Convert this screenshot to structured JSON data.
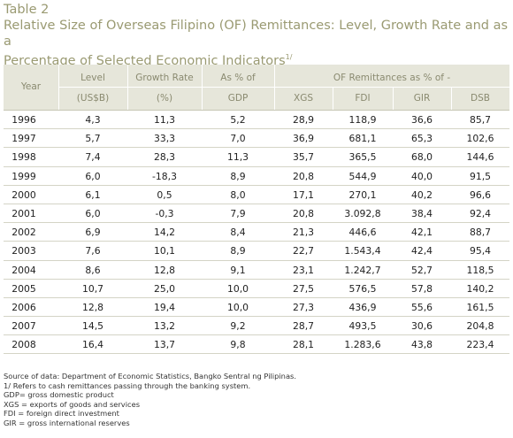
{
  "caption": {
    "table_label": "Table 2",
    "title_line1": "Relative Size of Overseas Filipino (OF) Remittances: Level, Growth Rate and as a",
    "title_line2": "Percentage of Selected Economic Indicators",
    "title_sup": "1/"
  },
  "headers": {
    "year": "Year",
    "level": "Level",
    "level_unit": "(US$B)",
    "growth": "Growth Rate",
    "growth_unit": "(%)",
    "gdp_top": "As % of",
    "gdp": "GDP",
    "of_group": "OF Remittances as % of  -",
    "xgs": "XGS",
    "fdi": "FDI",
    "gir": "GIR",
    "dsb": "DSB"
  },
  "rows": [
    {
      "year": "1996",
      "level": "4,3",
      "growth": "11,3",
      "gdp": "5,2",
      "xgs": "28,9",
      "fdi": "118,9",
      "gir": "36,6",
      "dsb": "85,7"
    },
    {
      "year": "1997",
      "level": "5,7",
      "growth": "33,3",
      "gdp": "7,0",
      "xgs": "36,9",
      "fdi": "681,1",
      "gir": "65,3",
      "dsb": "102,6"
    },
    {
      "year": "1998",
      "level": "7,4",
      "growth": "28,3",
      "gdp": "11,3",
      "xgs": "35,7",
      "fdi": "365,5",
      "gir": "68,0",
      "dsb": "144,6"
    },
    {
      "year": "1999",
      "level": "6,0",
      "growth": "-18,3",
      "gdp": "8,9",
      "xgs": "20,8",
      "fdi": "544,9",
      "gir": "40,0",
      "dsb": "91,5"
    },
    {
      "year": "2000",
      "level": "6,1",
      "growth": "0,5",
      "gdp": "8,0",
      "xgs": "17,1",
      "fdi": "270,1",
      "gir": "40,2",
      "dsb": "96,6"
    },
    {
      "year": "2001",
      "level": "6,0",
      "growth": "-0,3",
      "gdp": "7,9",
      "xgs": "20,8",
      "fdi": "3.092,8",
      "gir": "38,4",
      "dsb": "92,4"
    },
    {
      "year": "2002",
      "level": "6,9",
      "growth": "14,2",
      "gdp": "8,4",
      "xgs": "21,3",
      "fdi": "446,6",
      "gir": "42,1",
      "dsb": "88,7"
    },
    {
      "year": "2003",
      "level": "7,6",
      "growth": "10,1",
      "gdp": "8,9",
      "xgs": "22,7",
      "fdi": "1.543,4",
      "gir": "42,4",
      "dsb": "95,4"
    },
    {
      "year": "2004",
      "level": "8,6",
      "growth": "12,8",
      "gdp": "9,1",
      "xgs": "23,1",
      "fdi": "1.242,7",
      "gir": "52,7",
      "dsb": "118,5"
    },
    {
      "year": "2005",
      "level": "10,7",
      "growth": "25,0",
      "gdp": "10,0",
      "xgs": "27,5",
      "fdi": "576,5",
      "gir": "57,8",
      "dsb": "140,2"
    },
    {
      "year": "2006",
      "level": "12,8",
      "growth": "19,4",
      "gdp": "10,0",
      "xgs": "27,3",
      "fdi": "436,9",
      "gir": "55,6",
      "dsb": "161,5"
    },
    {
      "year": "2007",
      "level": "14,5",
      "growth": "13,2",
      "gdp": "9,2",
      "xgs": "28,7",
      "fdi": "493,5",
      "gir": "30,6",
      "dsb": "204,8"
    },
    {
      "year": "2008",
      "level": "16,4",
      "growth": "13,7",
      "gdp": "9,8",
      "xgs": "28,1",
      "fdi": "1.283,6",
      "gir": "43,8",
      "dsb": "223,4"
    }
  ],
  "notes": [
    "Source of data:   Department of Economic Statistics, Bangko Sentral ng Pilipinas.",
    "1/  Refers to cash remittances passing through the banking system.",
    "GDP= gross domestic product",
    "XGS = exports of goods and services",
    "FDI = foreign direct investment",
    "GIR = gross international reserves"
  ],
  "colors": {
    "caption": "#9a9a72",
    "header_bg": "#e6e6da",
    "header_text": "#8a8a70"
  }
}
